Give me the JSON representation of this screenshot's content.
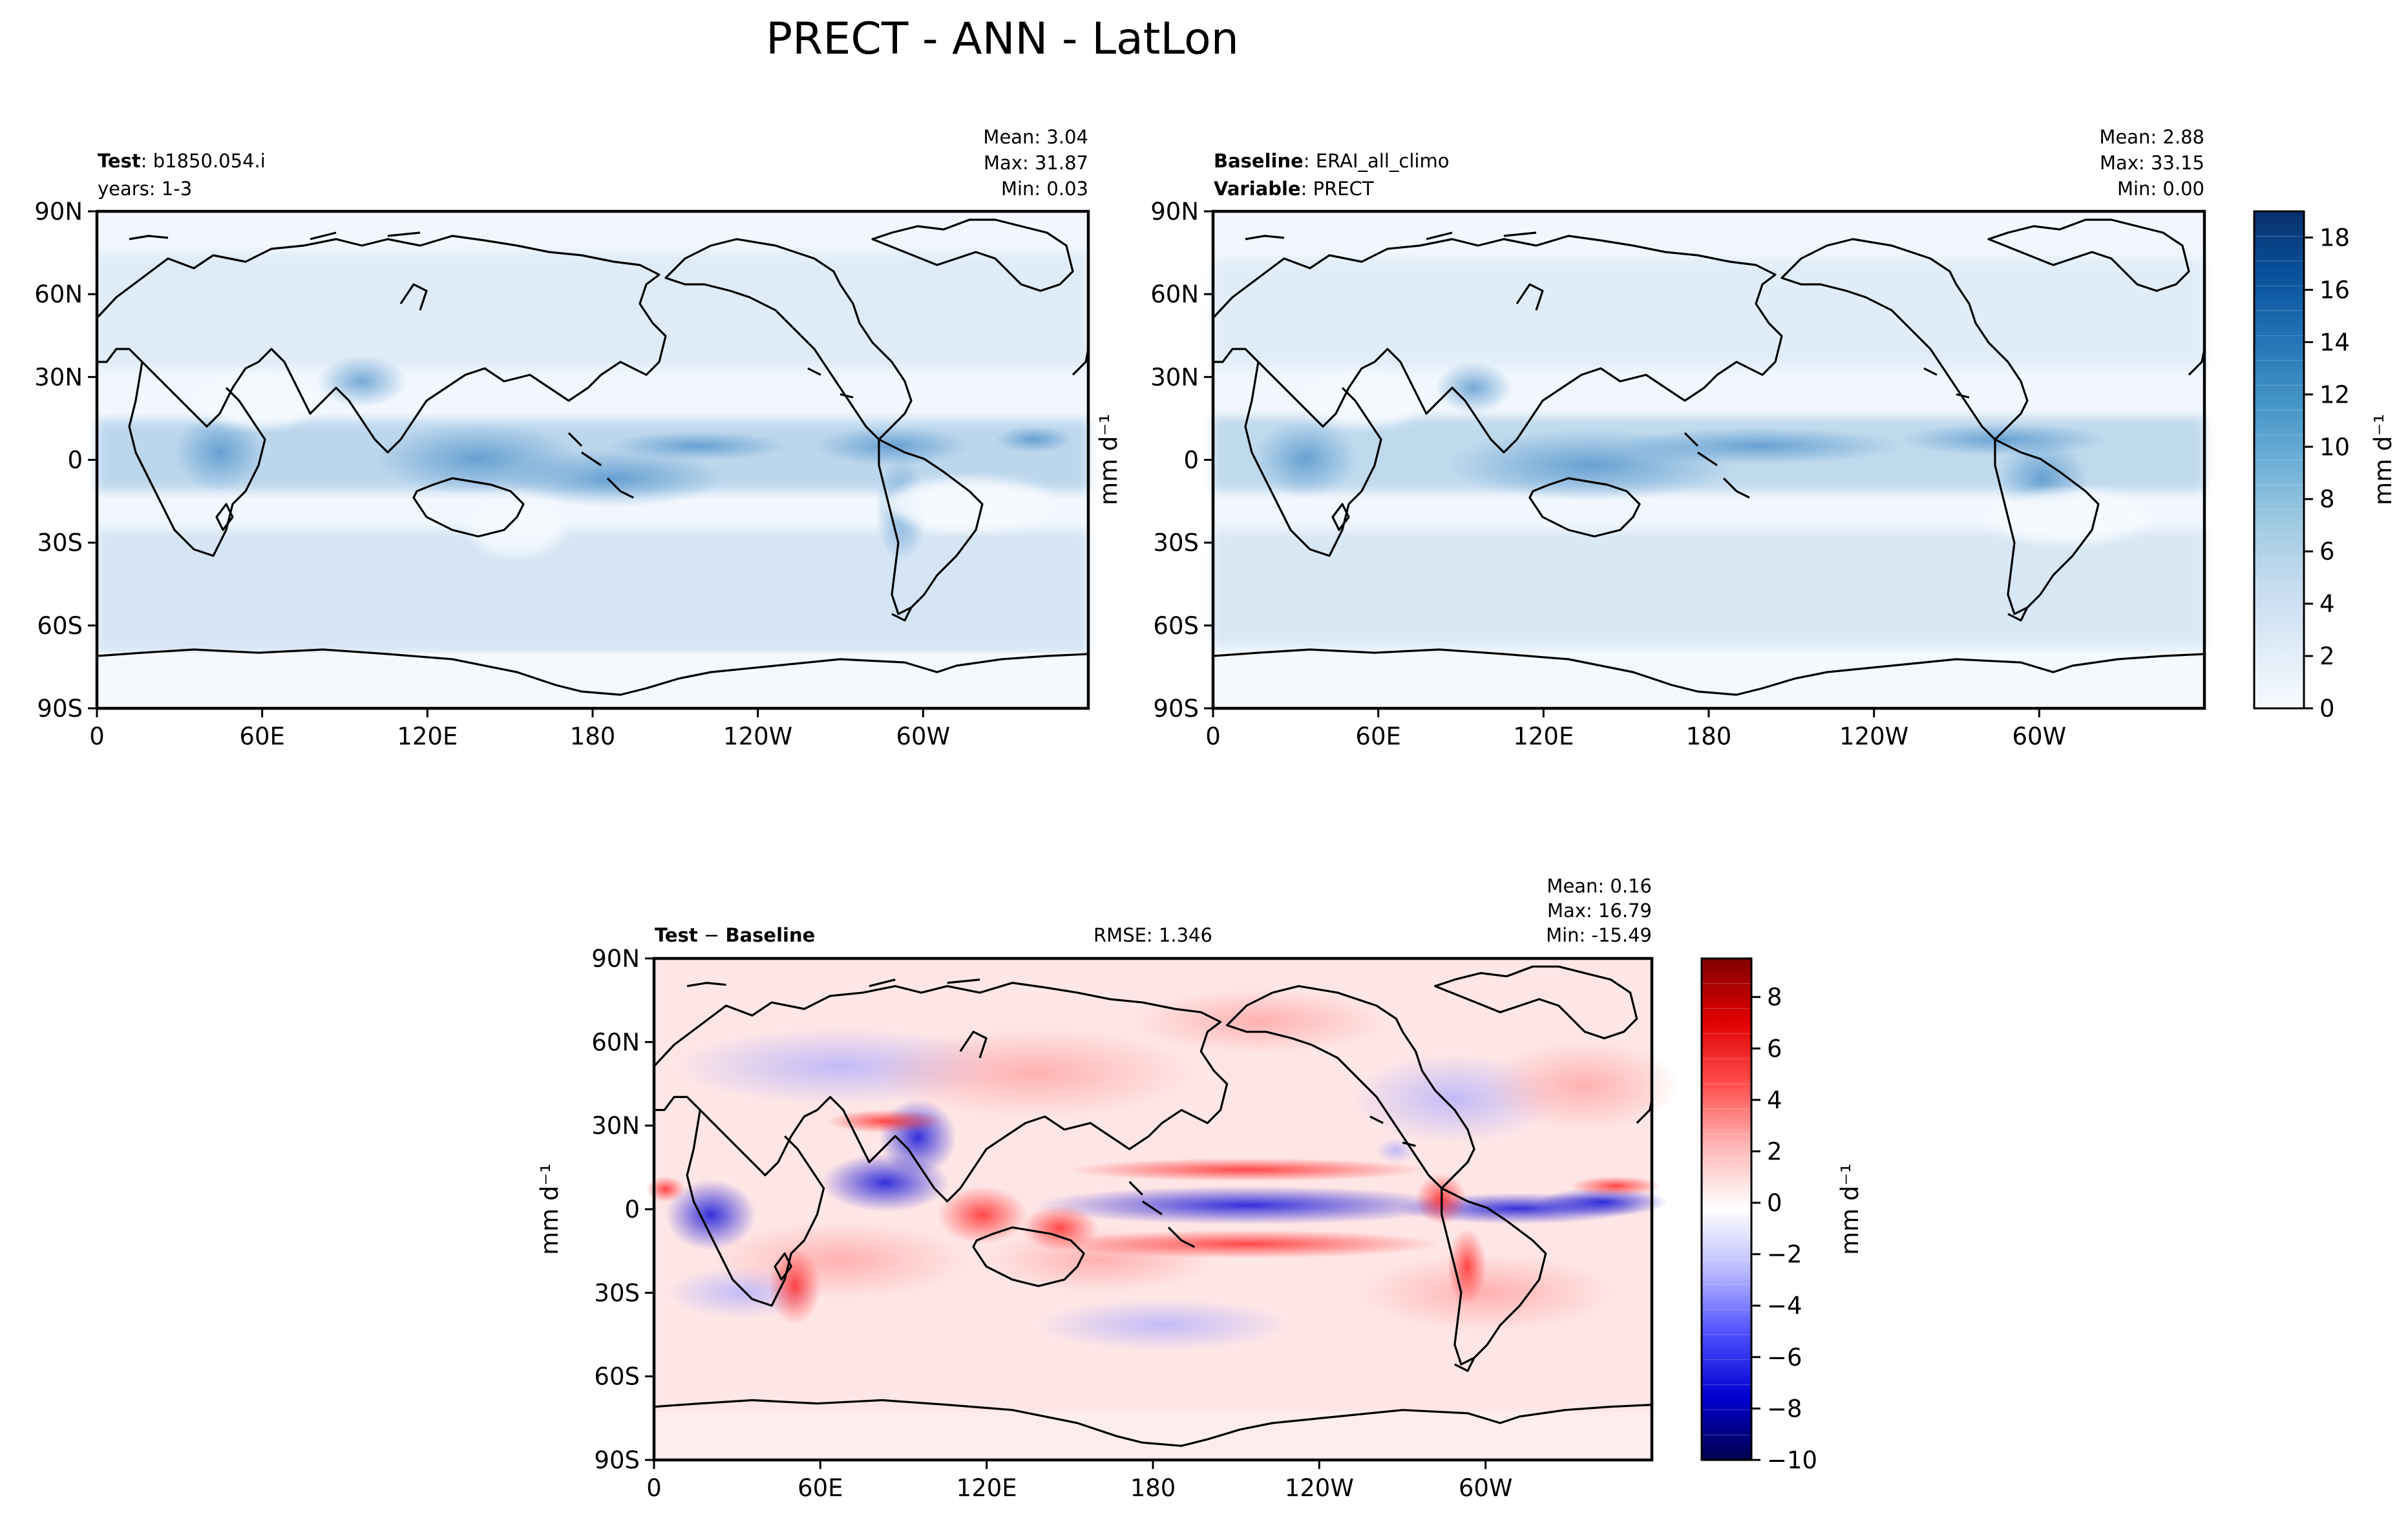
{
  "figure": {
    "title": "PRECT - ANN - LatLon"
  },
  "chart_data": [
    {
      "type": "heatmap",
      "name": "test",
      "label_bold": "Test",
      "label_value": "b1850.054.i",
      "label_line2": "years: 1-3",
      "stats": {
        "mean": "Mean:  3.04",
        "max": "Max: 31.87",
        "min": "Min:  0.03"
      },
      "x_ticks": [
        "0",
        "60E",
        "120E",
        "180",
        "120W",
        "60W"
      ],
      "y_ticks": [
        "90N",
        "60N",
        "30N",
        "0",
        "30S",
        "60S",
        "90S"
      ],
      "xlim": [
        0,
        360
      ],
      "ylim": [
        -90,
        90
      ],
      "colormap": "Blues",
      "units": "mm d⁻¹"
    },
    {
      "type": "heatmap",
      "name": "baseline",
      "label_bold": "Baseline",
      "label_value": "ERAI_all_climo",
      "label2_bold": "Variable",
      "label2_value": "PRECT",
      "stats": {
        "mean": "Mean:  2.88",
        "max": "Max: 33.15",
        "min": "Min:  0.00"
      },
      "x_ticks": [
        "0",
        "60E",
        "120E",
        "180",
        "120W",
        "60W"
      ],
      "y_ticks": [
        "90N",
        "60N",
        "30N",
        "0",
        "30S",
        "60S",
        "90S"
      ],
      "xlim": [
        0,
        360
      ],
      "ylim": [
        -90,
        90
      ],
      "colormap": "Blues",
      "units": "mm d⁻¹",
      "colorbar": {
        "ticks": [
          "0",
          "2",
          "4",
          "6",
          "8",
          "10",
          "12",
          "14",
          "16",
          "18"
        ],
        "range": [
          0,
          19
        ],
        "label": "mm d⁻¹",
        "colors": [
          "#f7fbff",
          "#deebf7",
          "#c6dbef",
          "#9ecae1",
          "#6baed6",
          "#4292c6",
          "#2171b5",
          "#08519c",
          "#08306b"
        ]
      }
    },
    {
      "type": "heatmap",
      "name": "difference",
      "label_bold": "Test",
      "label_sep": " − ",
      "label_bold2": "Baseline",
      "rmse": "RMSE: 1.346",
      "stats": {
        "mean": "Mean:  0.16",
        "max": "Max: 16.79",
        "min": "Min: -15.49"
      },
      "x_ticks": [
        "0",
        "60E",
        "120E",
        "180",
        "120W",
        "60W"
      ],
      "y_ticks": [
        "90N",
        "60N",
        "30N",
        "0",
        "30S",
        "60S",
        "90S"
      ],
      "xlim": [
        0,
        360
      ],
      "ylim": [
        -90,
        90
      ],
      "colormap": "seismic",
      "units": "mm d⁻¹",
      "colorbar": {
        "ticks": [
          "−10",
          "−8",
          "−6",
          "−4",
          "−2",
          "0",
          "2",
          "4",
          "6",
          "8"
        ],
        "range": [
          -10,
          9.5
        ],
        "label": "mm d⁻¹",
        "colors": [
          "#00004c",
          "#0000d0",
          "#4d4dff",
          "#b8b8ff",
          "#ffffff",
          "#ffb8b8",
          "#ff4d4d",
          "#e00000",
          "#800000"
        ]
      }
    }
  ]
}
